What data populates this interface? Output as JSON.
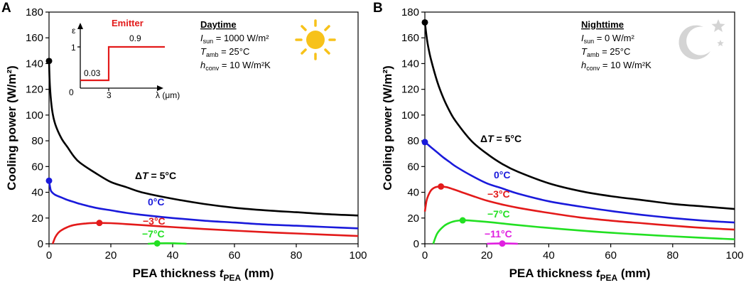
{
  "chart_data": [
    {
      "panel": "A",
      "type": "line",
      "xlabel_main": "PEA thickness ",
      "xlabel_var": "t",
      "xlabel_sub": "PEA",
      "xlabel_unit": " (mm)",
      "ylabel": "Cooling power (W/m²)",
      "xlim": [
        0,
        100
      ],
      "ylim": [
        0,
        180
      ],
      "xticks": [
        "0",
        "20",
        "40",
        "60",
        "80",
        "100"
      ],
      "yticks": [
        "0",
        "20",
        "40",
        "60",
        "80",
        "100",
        "120",
        "140",
        "160",
        "180"
      ],
      "info": {
        "heading": "Daytime",
        "lines": [
          {
            "sym": "I",
            "sub": "sun",
            "val": " = 1000 W/m²"
          },
          {
            "sym": "T",
            "sub": "amb",
            "val": " = 25°C"
          },
          {
            "sym": "h",
            "sub": "conv",
            "val": " = 10 W/m²K"
          }
        ]
      },
      "inset": {
        "title": "Emitter",
        "ylabel": "ε",
        "xlabel": "λ (μm)",
        "y_one": "1",
        "x_zero": "0",
        "x_cut": "3",
        "low_value": "0.03",
        "high_value": "0.9"
      },
      "series": [
        {
          "name": "ΔT = 5°C",
          "label_prefix": "Δ",
          "label_var": "T",
          "label_rest": " = 5°C",
          "color": "#000000",
          "x": [
            0,
            0.3,
            1,
            2,
            4,
            6,
            8,
            10,
            15,
            20,
            25,
            30,
            40,
            50,
            60,
            70,
            80,
            90,
            100
          ],
          "y": [
            142,
            122,
            104,
            93,
            82,
            75,
            68,
            63,
            55,
            48,
            44,
            40,
            35,
            31,
            28,
            26,
            24.5,
            23,
            22
          ],
          "marker": [
            0,
            142
          ]
        },
        {
          "name": "0°C",
          "color": "#1a1adb",
          "x": [
            0,
            0.5,
            1,
            2,
            4,
            6,
            8,
            10,
            15,
            20,
            25,
            30,
            40,
            50,
            60,
            70,
            80,
            90,
            100
          ],
          "y": [
            49,
            42,
            40,
            38,
            36,
            34,
            32.5,
            31,
            28,
            26,
            24,
            22.5,
            20,
            18,
            16.5,
            15,
            14,
            13,
            12
          ],
          "marker": [
            0,
            49
          ]
        },
        {
          "name": "−3°C",
          "color": "#e31a1a",
          "x": [
            1.2,
            2,
            3,
            4,
            6,
            8,
            10,
            12,
            14,
            16.3,
            20,
            25,
            30,
            40,
            50,
            60,
            70,
            80,
            90,
            100
          ],
          "y": [
            0,
            5,
            8.5,
            10.5,
            13,
            14.5,
            15.3,
            15.8,
            16.1,
            16.2,
            16,
            15.3,
            14.5,
            13,
            11.5,
            10.2,
            9,
            8,
            7,
            6
          ],
          "marker": [
            16.3,
            16.2
          ]
        },
        {
          "name": "−7°C",
          "color": "#22e022",
          "x": [
            32,
            35,
            38,
            41,
            44.5
          ],
          "y": [
            0,
            0.35,
            0.45,
            0.35,
            0
          ],
          "marker": [
            35,
            0.3
          ]
        }
      ]
    },
    {
      "panel": "B",
      "type": "line",
      "xlabel_main": "PEA thickness ",
      "xlabel_var": "t",
      "xlabel_sub": "PEA",
      "xlabel_unit": " (mm)",
      "ylabel": "Cooling power (W/m²)",
      "xlim": [
        0,
        100
      ],
      "ylim": [
        0,
        180
      ],
      "xticks": [
        "0",
        "20",
        "40",
        "60",
        "80",
        "100"
      ],
      "yticks": [
        "0",
        "20",
        "40",
        "60",
        "80",
        "100",
        "120",
        "140",
        "160",
        "180"
      ],
      "info": {
        "heading": "Nighttime",
        "lines": [
          {
            "sym": "I",
            "sub": "sun",
            "val": " = 0 W/m²"
          },
          {
            "sym": "T",
            "sub": "amb",
            "val": " = 25°C"
          },
          {
            "sym": "h",
            "sub": "conv",
            "val": " = 10 W/m²K"
          }
        ]
      },
      "series": [
        {
          "name": "ΔT = 5°C",
          "label_prefix": "Δ",
          "label_var": "T",
          "label_rest": " = 5°C",
          "color": "#000000",
          "x": [
            0,
            0.5,
            1,
            2,
            4,
            6,
            8,
            10,
            15,
            20,
            25,
            30,
            40,
            50,
            60,
            70,
            80,
            90,
            100
          ],
          "y": [
            172,
            162,
            154,
            143,
            126,
            113,
            103,
            95,
            80,
            70,
            62,
            56,
            47,
            41,
            37,
            34,
            31,
            29,
            27
          ],
          "marker": [
            0,
            172
          ]
        },
        {
          "name": "0°C",
          "color": "#1a1adb",
          "x": [
            0,
            1,
            2,
            4,
            6,
            8,
            10,
            15,
            20,
            25,
            30,
            40,
            50,
            60,
            70,
            80,
            90,
            100
          ],
          "y": [
            79,
            77,
            75,
            71,
            67,
            63.5,
            60,
            53,
            47,
            43,
            39,
            33,
            29,
            25.5,
            22.5,
            20,
            18,
            16.5
          ],
          "marker": [
            0,
            79
          ]
        },
        {
          "name": "−3°C",
          "color": "#e31a1a",
          "x": [
            0,
            0.5,
            1,
            2,
            3,
            4,
            5.2,
            7,
            9,
            12,
            15,
            20,
            25,
            30,
            40,
            50,
            60,
            70,
            80,
            90,
            100
          ],
          "y": [
            25,
            33,
            37,
            41.5,
            43.5,
            44.3,
            44.5,
            44,
            42.5,
            40,
            37.5,
            33.5,
            30.5,
            28,
            24,
            20.5,
            18,
            16,
            14,
            12.3,
            11
          ],
          "marker": [
            5.2,
            44.5
          ]
        },
        {
          "name": "−7°C",
          "color": "#22e022",
          "x": [
            2.7,
            4,
            6,
            8,
            10,
            12.2,
            15,
            20,
            25,
            30,
            40,
            50,
            60,
            70,
            80,
            90,
            100
          ],
          "y": [
            0,
            8,
            13.5,
            16.3,
            17.7,
            18.2,
            18,
            17,
            15.8,
            14.5,
            12.3,
            10.3,
            8.6,
            7.1,
            5.8,
            4.6,
            3.5
          ],
          "marker": [
            12.2,
            18.2
          ]
        },
        {
          "name": "−11°C",
          "color": "#e020e0",
          "x": [
            20,
            25,
            30
          ],
          "y": [
            0,
            0.35,
            0
          ],
          "marker": [
            25,
            0.2
          ]
        }
      ]
    }
  ]
}
